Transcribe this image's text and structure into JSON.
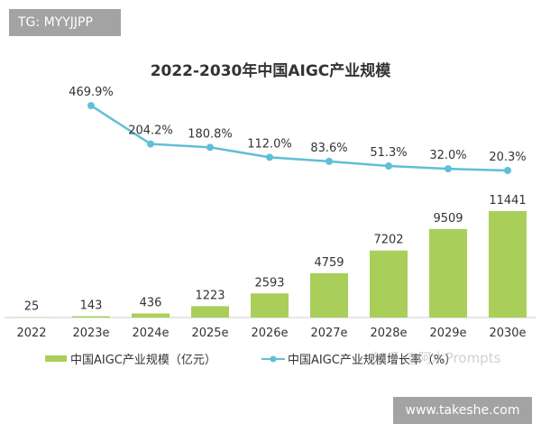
{
  "watermark_top": "TG: MYYJJPP",
  "watermark_bottom": "www.takeshe.com",
  "watermark_source": "知乎 @阿木Prompts",
  "chart_data": {
    "type": "bar+line",
    "title": "2022-2030年中国AIGC产业规模",
    "categories": [
      "2022",
      "2023e",
      "2024e",
      "2025e",
      "2026e",
      "2027e",
      "2028e",
      "2029e",
      "2030e"
    ],
    "series": [
      {
        "name": "中国AIGC产业规模（亿元）",
        "type": "bar",
        "color": "#a9cf5a",
        "values": [
          25,
          143,
          436,
          1223,
          2593,
          4759,
          7202,
          9509,
          11441
        ]
      },
      {
        "name": "中国AIGC产业规模增长率（%）",
        "type": "line",
        "color": "#5fbfd6",
        "values": [
          null,
          469.9,
          204.2,
          180.8,
          112.0,
          83.6,
          51.3,
          32.0,
          20.3
        ],
        "labels": [
          "",
          "469.9%",
          "204.2%",
          "180.8%",
          "112.0%",
          "83.6%",
          "51.3%",
          "32.0%",
          "20.3%"
        ]
      }
    ],
    "legend": "bottom",
    "grid": false
  }
}
